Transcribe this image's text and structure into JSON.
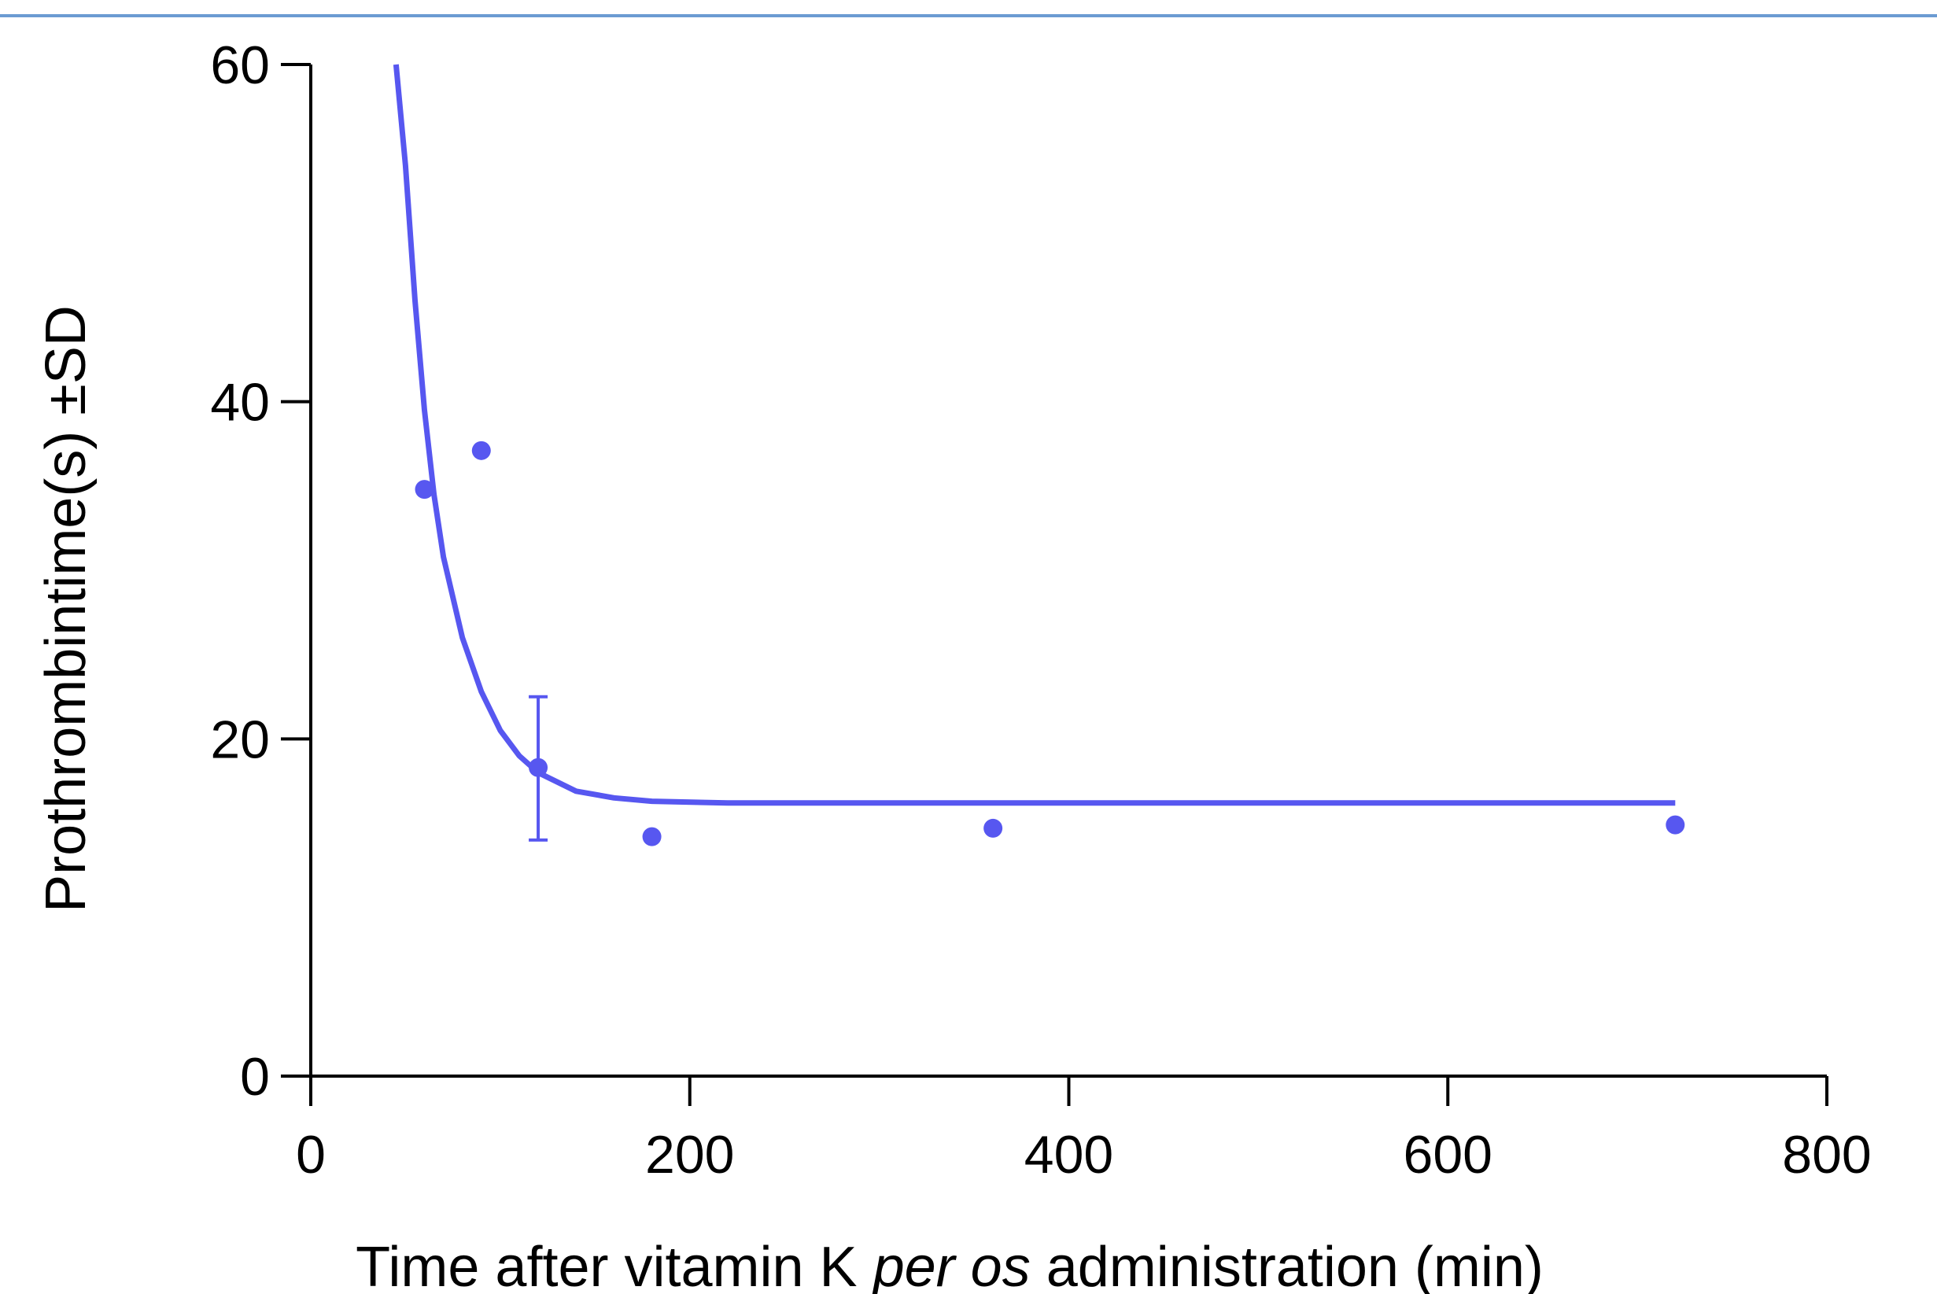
{
  "chart_data": {
    "type": "scatter",
    "xlabel_parts": [
      "Time after vitamin K ",
      "per os",
      " administration (min)"
    ],
    "ylabel": "Prothrombintime(s) ±SD",
    "xlim": [
      0,
      800
    ],
    "ylim": [
      0,
      60
    ],
    "xticks": [
      "0",
      "200",
      "400",
      "600",
      "800"
    ],
    "yticks": [
      "0",
      "20",
      "40",
      "60"
    ],
    "grid": false,
    "color": "#5757f0",
    "points": [
      {
        "x": 60,
        "y": 34.8
      },
      {
        "x": 90,
        "y": 37.1
      },
      {
        "x": 120,
        "y": 18.3,
        "err_low": 14.0,
        "err_high": 22.5
      },
      {
        "x": 180,
        "y": 14.2
      },
      {
        "x": 360,
        "y": 14.7
      },
      {
        "x": 720,
        "y": 14.9
      }
    ],
    "fit_curve": {
      "type": "exponential decay",
      "plateau": 16.2,
      "x_range": [
        45,
        720
      ],
      "points": [
        {
          "x": 45,
          "y": 60
        },
        {
          "x": 50,
          "y": 54
        },
        {
          "x": 55,
          "y": 46
        },
        {
          "x": 60,
          "y": 39.5
        },
        {
          "x": 65,
          "y": 34.5
        },
        {
          "x": 70,
          "y": 30.8
        },
        {
          "x": 80,
          "y": 26.0
        },
        {
          "x": 90,
          "y": 22.8
        },
        {
          "x": 100,
          "y": 20.5
        },
        {
          "x": 110,
          "y": 19.0
        },
        {
          "x": 120,
          "y": 18.0
        },
        {
          "x": 140,
          "y": 16.9
        },
        {
          "x": 160,
          "y": 16.5
        },
        {
          "x": 180,
          "y": 16.3
        },
        {
          "x": 220,
          "y": 16.2
        },
        {
          "x": 300,
          "y": 16.2
        },
        {
          "x": 500,
          "y": 16.2
        },
        {
          "x": 720,
          "y": 16.2
        }
      ]
    }
  }
}
